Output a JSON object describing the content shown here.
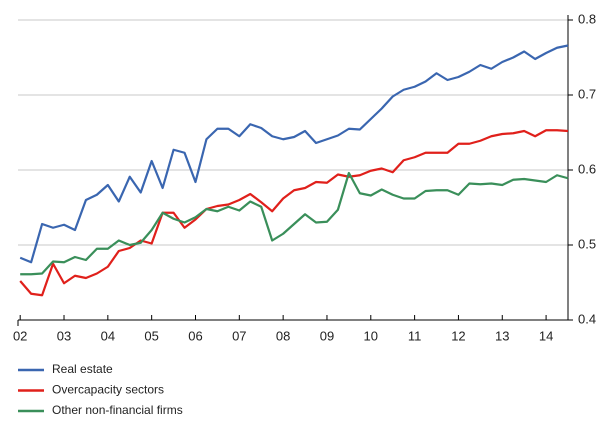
{
  "chart_data": {
    "type": "line",
    "x": [
      2002.0,
      2002.25,
      2002.5,
      2002.75,
      2003.0,
      2003.25,
      2003.5,
      2003.75,
      2004.0,
      2004.25,
      2004.5,
      2004.75,
      2005.0,
      2005.25,
      2005.5,
      2005.75,
      2006.0,
      2006.25,
      2006.5,
      2006.75,
      2007.0,
      2007.25,
      2007.5,
      2007.75,
      2008.0,
      2008.25,
      2008.5,
      2008.75,
      2009.0,
      2009.25,
      2009.5,
      2009.75,
      2010.0,
      2010.25,
      2010.5,
      2010.75,
      2011.0,
      2011.25,
      2011.5,
      2011.75,
      2012.0,
      2012.25,
      2012.5,
      2012.75,
      2013.0,
      2013.25,
      2013.5,
      2013.75,
      2014.0,
      2014.25,
      2014.5
    ],
    "series": [
      {
        "name": "Real estate",
        "color": "#3a66b0",
        "values": [
          0.483,
          0.477,
          0.528,
          0.523,
          0.527,
          0.52,
          0.56,
          0.567,
          0.58,
          0.558,
          0.591,
          0.57,
          0.612,
          0.576,
          0.627,
          0.623,
          0.584,
          0.641,
          0.655,
          0.655,
          0.645,
          0.661,
          0.656,
          0.645,
          0.641,
          0.644,
          0.652,
          0.636,
          0.641,
          0.646,
          0.655,
          0.654,
          0.668,
          0.682,
          0.698,
          0.707,
          0.711,
          0.718,
          0.729,
          0.72,
          0.724,
          0.731,
          0.74,
          0.735,
          0.744,
          0.75,
          0.758,
          0.748,
          0.756,
          0.763,
          0.766
        ]
      },
      {
        "name": "Overcapacity sectors",
        "color": "#e0201b",
        "values": [
          0.452,
          0.435,
          0.433,
          0.475,
          0.449,
          0.459,
          0.456,
          0.462,
          0.471,
          0.492,
          0.496,
          0.506,
          0.502,
          0.543,
          0.543,
          0.523,
          0.534,
          0.548,
          0.552,
          0.554,
          0.56,
          0.568,
          0.557,
          0.545,
          0.562,
          0.573,
          0.576,
          0.584,
          0.583,
          0.594,
          0.591,
          0.593,
          0.599,
          0.602,
          0.597,
          0.613,
          0.617,
          0.623,
          0.623,
          0.623,
          0.635,
          0.635,
          0.639,
          0.645,
          0.648,
          0.649,
          0.652,
          0.645,
          0.653,
          0.653,
          0.652
        ]
      },
      {
        "name": "Other non-financial firms",
        "color": "#3a8f5a",
        "values": [
          0.461,
          0.461,
          0.462,
          0.478,
          0.477,
          0.484,
          0.48,
          0.495,
          0.495,
          0.506,
          0.5,
          0.503,
          0.52,
          0.543,
          0.535,
          0.53,
          0.537,
          0.548,
          0.545,
          0.551,
          0.546,
          0.558,
          0.551,
          0.506,
          0.515,
          0.528,
          0.541,
          0.53,
          0.531,
          0.547,
          0.596,
          0.569,
          0.566,
          0.574,
          0.567,
          0.562,
          0.562,
          0.572,
          0.573,
          0.573,
          0.567,
          0.582,
          0.581,
          0.582,
          0.58,
          0.587,
          0.588,
          0.586,
          0.584,
          0.593,
          0.589
        ]
      }
    ],
    "xlim": [
      2001.95,
      2014.5
    ],
    "xticks": [
      {
        "value": 2002,
        "label": "02"
      },
      {
        "value": 2003,
        "label": "03"
      },
      {
        "value": 2004,
        "label": "04"
      },
      {
        "value": 2005,
        "label": "05"
      },
      {
        "value": 2006,
        "label": "06"
      },
      {
        "value": 2007,
        "label": "07"
      },
      {
        "value": 2008,
        "label": "08"
      },
      {
        "value": 2009,
        "label": "09"
      },
      {
        "value": 2010,
        "label": "10"
      },
      {
        "value": 2011,
        "label": "11"
      },
      {
        "value": 2012,
        "label": "12"
      },
      {
        "value": 2013,
        "label": "13"
      },
      {
        "value": 2014,
        "label": "14"
      }
    ],
    "ylim": [
      0.4,
      0.8
    ],
    "yticks": [
      0.4,
      0.5,
      0.6,
      0.7,
      0.8
    ],
    "grid": true
  }
}
